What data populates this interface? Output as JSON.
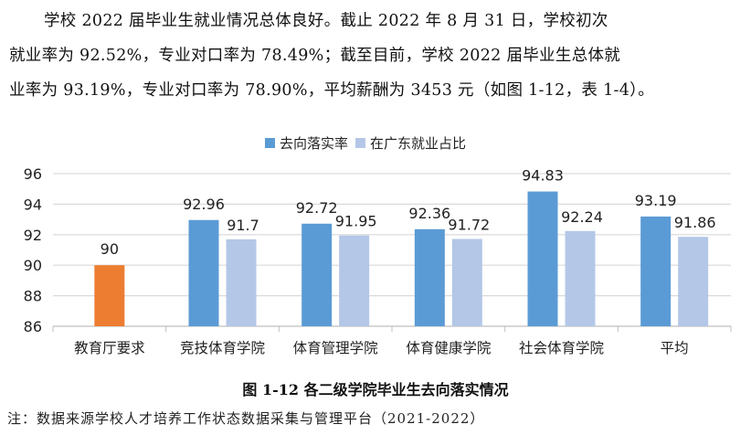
{
  "paragraph": {
    "lines": [
      "学校 2022 届毕业生就业情况总体良好。截止 2022 年 8 月 31 日，学校初次",
      "就业率为 92.52%，专业对口率为 78.49%；截至目前，学校 2022 届毕业生总体就",
      "业率为 93.19%，专业对口率为 78.90%，平均薪酬为 3453 元（如图 1-12，表 1-4）。"
    ]
  },
  "figure": {
    "caption": "图 1-12 各二级学院毕业生去向落实情况",
    "note": "注：数据来源学校人才培养工作状态数据采集与管理平台（2021-2022）"
  },
  "colors": {
    "series1": "#5B9BD5",
    "series2": "#B4C7E7",
    "requirement": "#ED7D31",
    "grid": "#D9D9D9",
    "axis": "#BFBFBF"
  },
  "chart_data": {
    "type": "bar",
    "title": "",
    "xlabel": "",
    "ylabel": "",
    "ylim": [
      86,
      96
    ],
    "yticks": [
      86,
      88,
      90,
      92,
      94,
      96
    ],
    "grid": true,
    "legend_position": "top",
    "categories": [
      "教育厅要求",
      "竞技体育学院",
      "体育管理学院",
      "体育健康学院",
      "社会体育学院",
      "平均"
    ],
    "series": [
      {
        "name": "去向落实率",
        "values": [
          90,
          92.96,
          92.72,
          92.36,
          94.83,
          93.19
        ],
        "labels": [
          "90",
          "92.96",
          "92.72",
          "92.36",
          "94.83",
          "93.19"
        ]
      },
      {
        "name": "在广东就业占比",
        "values": [
          null,
          91.7,
          91.95,
          91.72,
          92.24,
          91.86
        ],
        "labels": [
          "",
          "91.7",
          "91.95",
          "91.72",
          "92.24",
          "91.86"
        ]
      }
    ],
    "annotations": [
      "教育厅要求 bar shown in orange (90)"
    ]
  }
}
